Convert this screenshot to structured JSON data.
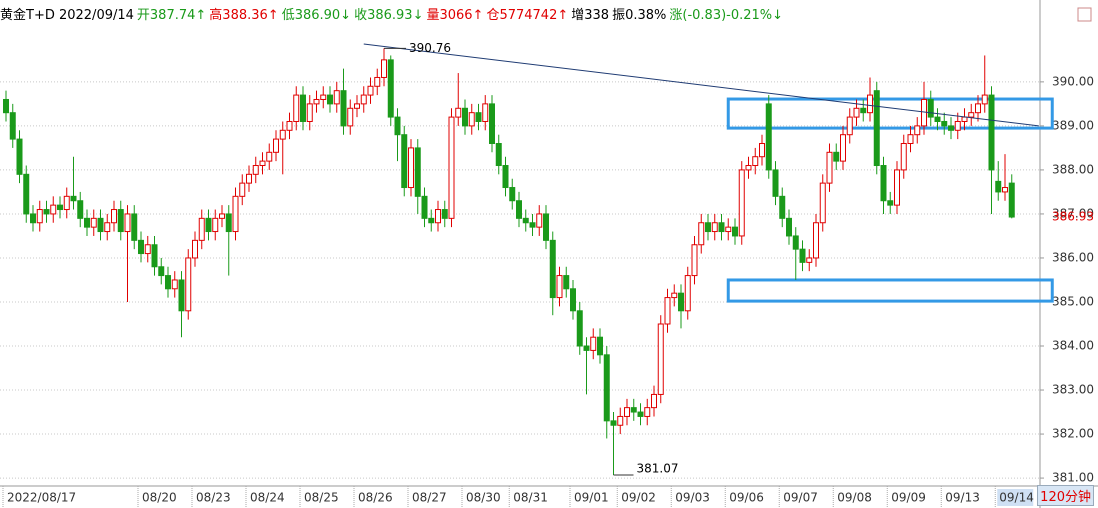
{
  "chart_data": {
    "type": "candlestick",
    "header": [
      "黄金T+D 2022/09/14",
      "开387.74↑",
      "高388.36↑",
      "低386.90↓",
      "收386.93↓",
      "量3066↑",
      "仓5774742↑",
      "增338",
      "振0.38%",
      "涨(-0.83)-0.21%↓"
    ],
    "header_colors": [
      "#000000",
      "#1a9a1a",
      "#e00000",
      "#1a9a1a",
      "#1a9a1a",
      "#e00000",
      "#e00000",
      "#000000",
      "#000000",
      "#1a9a1a"
    ],
    "period": "120分钟",
    "up_color": "#e00000",
    "down_color": "#1a9a1a",
    "ylim": [
      380.82,
      391.36
    ],
    "yticks": [
      {
        "value": 381,
        "label": "381.00"
      },
      {
        "value": 382,
        "label": "382.00"
      },
      {
        "value": 383,
        "label": "383.00"
      },
      {
        "value": 384,
        "label": "384.00"
      },
      {
        "value": 385,
        "label": "385.00"
      },
      {
        "value": 386,
        "label": "386.00"
      },
      {
        "value": 387,
        "label": "387.00"
      },
      {
        "value": 388,
        "label": "388.00"
      },
      {
        "value": 389,
        "label": "389.00"
      },
      {
        "value": 390,
        "label": "390.00"
      }
    ],
    "grid": true,
    "xticks": [
      {
        "value": 0,
        "label": "2022/08/17"
      },
      {
        "value": 20,
        "label": "08/20"
      },
      {
        "value": 28,
        "label": "08/23"
      },
      {
        "value": 36,
        "label": "08/24"
      },
      {
        "value": 44,
        "label": "08/25"
      },
      {
        "value": 52,
        "label": "08/26"
      },
      {
        "value": 60,
        "label": "08/27"
      },
      {
        "value": 68,
        "label": "08/30"
      },
      {
        "value": 75,
        "label": "08/31"
      },
      {
        "value": 84,
        "label": "09/01"
      },
      {
        "value": 91,
        "label": "09/02"
      },
      {
        "value": 99,
        "label": "09/03"
      },
      {
        "value": 107,
        "label": "09/06"
      },
      {
        "value": 115,
        "label": "09/07"
      },
      {
        "value": 123,
        "label": "09/08"
      },
      {
        "value": 131,
        "label": "09/09"
      },
      {
        "value": 139,
        "label": "09/13"
      },
      {
        "value": 147,
        "label": "09/14"
      }
    ],
    "open": [
      389.6,
      389.3,
      388.7,
      387.9,
      387.0,
      386.8,
      387.1,
      387.0,
      387.2,
      387.1,
      387.4,
      387.3,
      386.9,
      386.7,
      386.9,
      386.6,
      386.8,
      387.1,
      386.6,
      387.0,
      386.4,
      386.1,
      386.3,
      385.8,
      385.6,
      385.3,
      385.5,
      384.8,
      386.0,
      386.4,
      386.9,
      386.6,
      386.9,
      387.0,
      386.6,
      387.4,
      387.7,
      387.9,
      388.1,
      388.2,
      388.4,
      388.7,
      388.9,
      389.1,
      389.7,
      389.1,
      389.5,
      389.6,
      389.7,
      389.5,
      389.8,
      389.0,
      389.4,
      389.5,
      389.7,
      389.9,
      390.1,
      390.5,
      389.2,
      388.8,
      387.6,
      388.5,
      387.4,
      386.9,
      386.8,
      387.1,
      386.9,
      389.2,
      389.4,
      389.0,
      389.3,
      389.1,
      389.5,
      388.6,
      388.1,
      387.6,
      387.3,
      386.9,
      386.8,
      386.7,
      387.0,
      386.4,
      385.1,
      385.6,
      385.3,
      384.8,
      384.0,
      383.9,
      384.2,
      383.8,
      382.3,
      382.2,
      382.4,
      382.6,
      382.5,
      382.4,
      382.6,
      382.9,
      384.5,
      385.1,
      385.2,
      384.8,
      385.6,
      386.3,
      386.8,
      386.6,
      386.8,
      386.6,
      386.7,
      386.5,
      388.0,
      388.1,
      388.3,
      389.5,
      388.0,
      387.4,
      386.9,
      386.5,
      386.2,
      385.9,
      386.0,
      386.8,
      387.7,
      388.4,
      388.2,
      388.8,
      389.2,
      389.4,
      389.3,
      389.8,
      388.1,
      387.3,
      387.2,
      388.0,
      388.6,
      388.8,
      389.0,
      389.6,
      389.2,
      389.1,
      389.0,
      388.9,
      389.1,
      389.2,
      389.3,
      389.5,
      389.7,
      387.74,
      387.5,
      387.7
    ],
    "high": [
      389.8,
      389.5,
      388.9,
      388.1,
      387.2,
      387.3,
      387.3,
      387.4,
      387.4,
      387.6,
      388.3,
      387.5,
      387.1,
      387.1,
      387.1,
      387.0,
      387.3,
      387.3,
      387.2,
      387.2,
      386.6,
      386.5,
      386.5,
      386.0,
      385.8,
      385.7,
      385.7,
      386.2,
      386.6,
      387.1,
      387.1,
      387.1,
      387.2,
      387.2,
      387.6,
      387.9,
      388.1,
      388.3,
      388.4,
      388.6,
      388.9,
      389.1,
      389.3,
      389.9,
      389.9,
      389.7,
      389.8,
      389.9,
      389.9,
      390.0,
      390.3,
      389.6,
      389.7,
      389.9,
      390.1,
      390.3,
      390.76,
      390.6,
      389.4,
      389.0,
      388.7,
      388.7,
      387.6,
      387.1,
      387.3,
      387.3,
      389.4,
      390.2,
      389.6,
      389.5,
      389.5,
      389.7,
      389.7,
      388.8,
      388.3,
      387.8,
      387.5,
      387.1,
      387.0,
      387.2,
      387.2,
      386.6,
      385.8,
      385.8,
      385.5,
      385.0,
      384.2,
      384.4,
      384.4,
      384.0,
      382.5,
      382.6,
      382.8,
      382.8,
      382.7,
      382.8,
      383.1,
      384.7,
      385.3,
      385.4,
      385.4,
      385.8,
      386.5,
      387.0,
      387.0,
      387.0,
      387.0,
      386.9,
      386.9,
      388.2,
      388.3,
      388.5,
      388.8,
      389.7,
      388.2,
      387.6,
      387.1,
      386.7,
      386.4,
      386.2,
      387.0,
      387.9,
      388.6,
      388.6,
      389.0,
      389.4,
      389.6,
      389.6,
      390.1,
      390.0,
      388.3,
      387.5,
      388.2,
      388.8,
      389.0,
      389.2,
      390.0,
      389.8,
      389.4,
      389.3,
      389.2,
      389.3,
      389.4,
      389.5,
      389.7,
      390.6,
      389.9,
      388.2,
      388.36,
      387.9
    ],
    "low": [
      389.1,
      388.5,
      387.7,
      386.8,
      386.6,
      386.6,
      386.8,
      386.8,
      386.9,
      386.9,
      387.1,
      386.7,
      386.5,
      386.5,
      386.4,
      386.4,
      386.6,
      386.4,
      385.0,
      386.2,
      385.9,
      385.9,
      385.6,
      385.4,
      385.1,
      385.1,
      384.2,
      384.6,
      385.8,
      386.2,
      386.4,
      386.4,
      386.7,
      385.6,
      386.4,
      387.2,
      387.5,
      387.7,
      387.9,
      388.0,
      388.2,
      387.9,
      388.7,
      388.9,
      388.9,
      388.9,
      389.3,
      389.4,
      389.3,
      389.3,
      388.8,
      388.8,
      389.2,
      389.3,
      389.5,
      389.7,
      389.9,
      389.0,
      388.2,
      387.4,
      387.4,
      387.0,
      386.7,
      386.6,
      386.6,
      386.7,
      386.7,
      389.0,
      388.8,
      388.8,
      388.9,
      388.9,
      388.4,
      387.9,
      387.4,
      387.1,
      386.7,
      386.6,
      386.5,
      386.5,
      386.2,
      384.7,
      384.9,
      385.1,
      384.6,
      383.8,
      382.9,
      383.7,
      383.6,
      381.9,
      381.07,
      382.0,
      382.2,
      382.3,
      382.2,
      382.2,
      382.4,
      382.7,
      384.3,
      384.9,
      384.4,
      384.6,
      385.4,
      386.1,
      386.4,
      386.4,
      386.4,
      386.4,
      386.3,
      386.3,
      387.8,
      387.9,
      388.1,
      387.8,
      387.2,
      386.7,
      386.3,
      385.5,
      385.7,
      385.7,
      385.8,
      386.6,
      387.5,
      388.0,
      388.0,
      388.6,
      389.0,
      389.1,
      389.1,
      387.9,
      387.0,
      387.0,
      387.0,
      387.8,
      388.4,
      388.6,
      388.8,
      389.0,
      388.9,
      388.8,
      388.7,
      388.7,
      388.9,
      389.0,
      389.1,
      389.3,
      387.0,
      387.3,
      387.3,
      386.9
    ],
    "close": [
      389.3,
      388.7,
      387.9,
      387.0,
      386.8,
      387.1,
      387.0,
      387.2,
      387.1,
      387.4,
      387.3,
      386.9,
      386.7,
      386.9,
      386.6,
      386.8,
      387.1,
      386.6,
      387.0,
      386.4,
      386.1,
      386.3,
      385.8,
      385.6,
      385.3,
      385.5,
      384.8,
      386.0,
      386.4,
      386.9,
      386.6,
      386.9,
      387.0,
      386.6,
      387.4,
      387.7,
      387.9,
      388.1,
      388.2,
      388.4,
      388.7,
      388.9,
      389.1,
      389.7,
      389.1,
      389.5,
      389.6,
      389.7,
      389.5,
      389.8,
      389.0,
      389.4,
      389.5,
      389.7,
      389.9,
      390.1,
      390.5,
      389.2,
      388.8,
      387.6,
      388.5,
      387.4,
      386.9,
      386.8,
      387.1,
      386.9,
      389.2,
      389.4,
      389.0,
      389.3,
      389.1,
      389.5,
      388.6,
      388.1,
      387.6,
      387.3,
      386.9,
      386.8,
      386.7,
      387.0,
      386.4,
      385.1,
      385.6,
      385.3,
      384.8,
      384.0,
      383.9,
      384.2,
      383.8,
      382.3,
      382.2,
      382.4,
      382.6,
      382.5,
      382.4,
      382.6,
      382.9,
      384.5,
      385.1,
      385.2,
      384.8,
      385.6,
      386.3,
      386.8,
      386.6,
      386.8,
      386.6,
      386.7,
      386.5,
      388.0,
      388.1,
      388.3,
      388.6,
      388.0,
      387.4,
      386.9,
      386.5,
      386.2,
      385.9,
      386.0,
      386.8,
      387.7,
      388.4,
      388.2,
      388.8,
      389.2,
      389.4,
      389.3,
      389.7,
      388.1,
      387.3,
      387.2,
      388.0,
      388.6,
      388.8,
      389.0,
      389.6,
      389.2,
      389.1,
      389.0,
      388.9,
      389.1,
      389.2,
      389.3,
      389.5,
      389.7,
      388.0,
      387.5,
      387.6,
      386.93
    ],
    "trendline": {
      "x": [
        53,
        153
      ],
      "y": [
        390.86,
        389.0
      ],
      "color": "#1f3b73"
    },
    "zones": [
      {
        "x": [
          107,
          155
        ],
        "y": [
          389.61,
          388.95
        ]
      },
      {
        "x": [
          107,
          155
        ],
        "y": [
          385.5,
          385.02
        ]
      }
    ],
    "zone_color": "#3399e6",
    "max_mark": 56,
    "min_mark": 90
  }
}
